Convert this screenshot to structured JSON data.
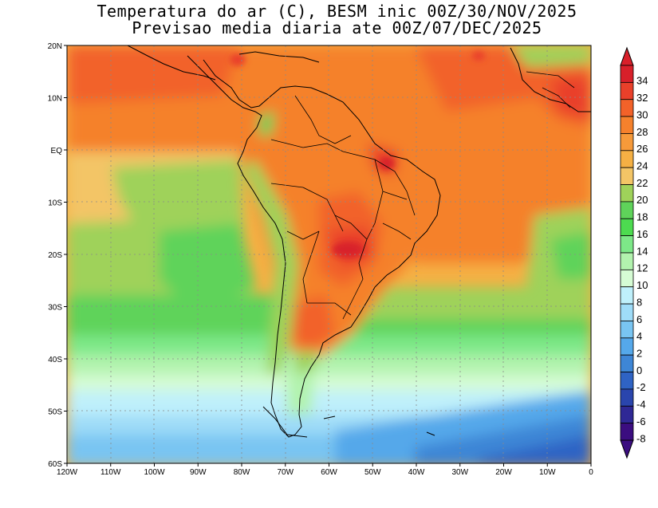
{
  "title": {
    "line1": "Temperatura do ar (C), BESM inic 00Z/30/NOV/2025",
    "line2": "Previsao media diaria ate 00Z/07/DEC/2025"
  },
  "map": {
    "lon_range": [
      -120,
      0
    ],
    "lat_range": [
      -60,
      20
    ],
    "x_ticks": [
      "120W",
      "110W",
      "100W",
      "90W",
      "80W",
      "70W",
      "60W",
      "50W",
      "40W",
      "30W",
      "20W",
      "10W",
      "0"
    ],
    "y_ticks": [
      "20N",
      "10N",
      "EQ",
      "10S",
      "20S",
      "30S",
      "40S",
      "50S",
      "60S"
    ]
  },
  "colorbar": {
    "labels": [
      "34",
      "32",
      "30",
      "28",
      "26",
      "24",
      "22",
      "20",
      "18",
      "16",
      "14",
      "12",
      "10",
      "8",
      "6",
      "4",
      "2",
      "0",
      "-2",
      "-4",
      "-6",
      "-8"
    ],
    "colors": [
      "#d8202a",
      "#e9402a",
      "#f26229",
      "#f5812c",
      "#f69a3a",
      "#f5b044",
      "#f3c566",
      "#9fd25a",
      "#5fd35a",
      "#4ddb50",
      "#7de888",
      "#b2f3ae",
      "#d6fcd4",
      "#bff0fb",
      "#9fdcf8",
      "#79c5f2",
      "#55a8ea",
      "#3e86d6",
      "#2f63c4",
      "#2a45ad",
      "#2f2895",
      "#3b0d80"
    ]
  }
}
